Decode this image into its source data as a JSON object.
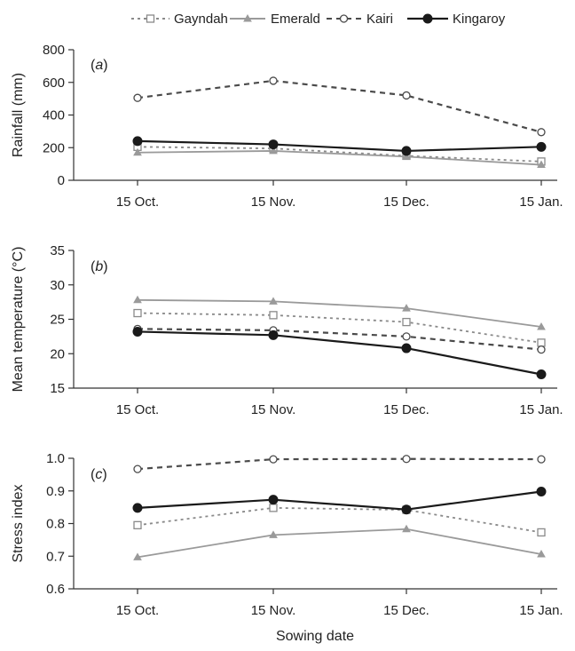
{
  "legend": {
    "placement": "top",
    "entries": [
      "Gayndah",
      "Emerald",
      "Kairi",
      "Kingaroy"
    ]
  },
  "series_style": {
    "Gayndah": {
      "color": "#8a8a8a",
      "dash": "dotted",
      "marker": "open-square"
    },
    "Emerald": {
      "color": "#9a9a9a",
      "dash": "solid",
      "marker": "triangle"
    },
    "Kairi": {
      "color": "#4a4a4a",
      "dash": "dashed",
      "marker": "open-circle"
    },
    "Kingaroy": {
      "color": "#1a1a1a",
      "dash": "solid",
      "marker": "filled-circle"
    }
  },
  "shared_xlabel": "Sowing date",
  "chart_data": [
    {
      "type": "line",
      "panel": "a",
      "ylabel": "Rainfall (mm)",
      "ylim": [
        0,
        800
      ],
      "yticks": [
        0,
        200,
        400,
        600,
        800
      ],
      "categories": [
        "15 Oct.",
        "15 Nov.",
        "15 Dec.",
        "15 Jan."
      ],
      "series": [
        {
          "name": "Gayndah",
          "values": [
            205,
            195,
            150,
            115
          ]
        },
        {
          "name": "Emerald",
          "values": [
            170,
            180,
            145,
            95
          ]
        },
        {
          "name": "Kairi",
          "values": [
            505,
            610,
            520,
            295
          ]
        },
        {
          "name": "Kingaroy",
          "values": [
            240,
            220,
            180,
            205
          ]
        }
      ]
    },
    {
      "type": "line",
      "panel": "b",
      "ylabel": "Mean temperature (°C)",
      "ylim": [
        15,
        35
      ],
      "yticks": [
        15,
        20,
        25,
        30,
        35
      ],
      "categories": [
        "15 Oct.",
        "15 Nov.",
        "15 Dec.",
        "15 Jan."
      ],
      "series": [
        {
          "name": "Gayndah",
          "values": [
            25.9,
            25.6,
            24.6,
            21.6
          ]
        },
        {
          "name": "Emerald",
          "values": [
            27.8,
            27.6,
            26.6,
            23.9
          ]
        },
        {
          "name": "Kairi",
          "values": [
            23.6,
            23.4,
            22.5,
            20.6
          ]
        },
        {
          "name": "Kingaroy",
          "values": [
            23.2,
            22.7,
            20.8,
            17.0
          ]
        }
      ]
    },
    {
      "type": "line",
      "panel": "c",
      "ylabel": "Stress index",
      "ylim": [
        0.6,
        1.0
      ],
      "yticks": [
        0.6,
        0.7,
        0.8,
        0.9,
        1.0
      ],
      "ytick_labels": [
        "0.6",
        "0.7",
        "0.8",
        "0.9",
        "1.0"
      ],
      "categories": [
        "15 Oct.",
        "15 Nov.",
        "15 Dec.",
        "15 Jan."
      ],
      "series": [
        {
          "name": "Gayndah",
          "values": [
            0.795,
            0.848,
            0.842,
            0.773
          ]
        },
        {
          "name": "Emerald",
          "values": [
            0.697,
            0.765,
            0.783,
            0.706
          ]
        },
        {
          "name": "Kairi",
          "values": [
            0.967,
            0.997,
            0.998,
            0.997
          ]
        },
        {
          "name": "Kingaroy",
          "values": [
            0.848,
            0.873,
            0.843,
            0.898
          ]
        }
      ]
    }
  ]
}
